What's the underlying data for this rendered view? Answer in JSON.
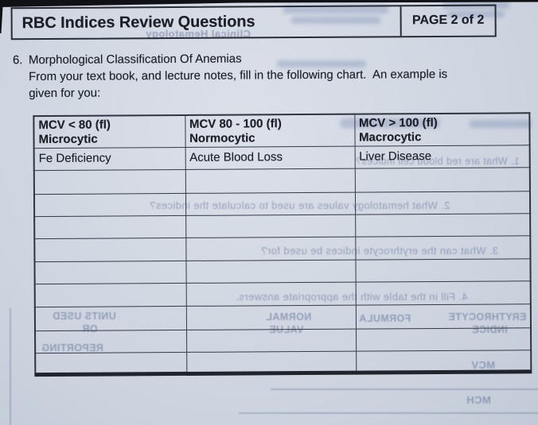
{
  "colors": {
    "paper": "#d3d9e3",
    "ink": "#1c1f26",
    "table_line": "#2e3440",
    "bleed_ink": "#5c6e96"
  },
  "page": {
    "header": {
      "title": "RBC Indices Review Questions",
      "page_label": "PAGE 2 of 2"
    },
    "question": {
      "number": "6.",
      "title": "Morphological Classification Of Anemias",
      "instruction_line1": "From your text book, and lecture notes, fill in the following chart.  An example is",
      "instruction_line2": "given for you:"
    },
    "table": {
      "columns": [
        {
          "range": "MCV < 80 (fl)",
          "classification": "Microcytic"
        },
        {
          "range": "MCV 80 - 100 (fl)",
          "classification": "Normocytic"
        },
        {
          "range": "MCV > 100 (fl)",
          "classification": "Macrocytic"
        }
      ],
      "example_row": [
        "Fe Deficiency",
        "Acute Blood Loss",
        "Liver Disease"
      ],
      "empty_row_count": 9
    },
    "bleed_through_texts": [
      "Clinical Hematology",
      "1. What are red blood cell indices?",
      "2. What hematology values are used to calculate the indices?",
      "3. What can the erythrocyte indices be used for?",
      "4. Fill in the table with the appropriate answers.",
      "ERYTHROCYTE",
      "INDICE",
      "FORMULA",
      "NORMAL",
      "VALUE",
      "UNITS USED",
      "OR",
      "REPORTING",
      "MCV",
      "MCH"
    ]
  }
}
